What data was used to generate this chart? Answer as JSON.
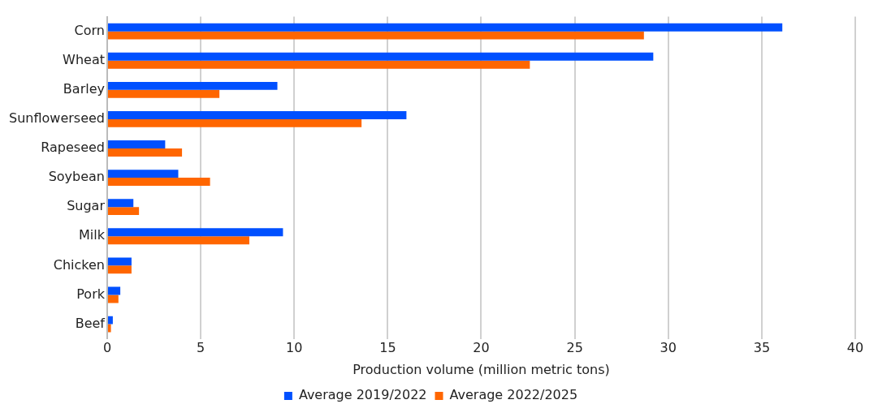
{
  "chart_data": {
    "type": "bar",
    "orientation": "horizontal",
    "categories": [
      "Corn",
      "Wheat",
      "Barley",
      "Sunflowerseed",
      "Rapeseed",
      "Soybean",
      "Sugar",
      "Milk",
      "Chicken",
      "Pork",
      "Beef"
    ],
    "series": [
      {
        "name": "Average 2019/2022",
        "color": "#0050ff",
        "values": [
          36.1,
          29.2,
          9.1,
          16.0,
          3.1,
          3.8,
          1.4,
          9.4,
          1.3,
          0.7,
          0.3
        ]
      },
      {
        "name": "Average 2022/2025",
        "color": "#ff6600",
        "values": [
          28.7,
          22.6,
          6.0,
          13.6,
          4.0,
          5.5,
          1.7,
          7.6,
          1.3,
          0.6,
          0.2
        ]
      }
    ],
    "xlabel": "Production volume (million metric tons)",
    "xlim": [
      0,
      40
    ],
    "xticks": [
      0,
      5,
      10,
      15,
      20,
      25,
      30,
      35,
      40
    ],
    "grid": "x",
    "legend": "bottom"
  }
}
